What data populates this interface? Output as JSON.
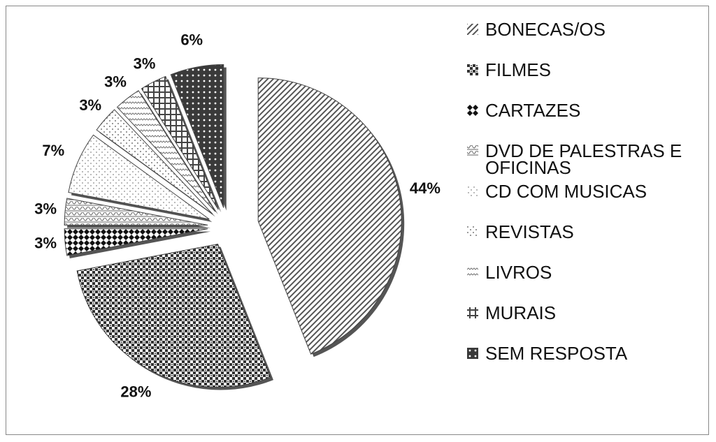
{
  "chart_data": {
    "type": "pie",
    "categories": [
      "BONECAS/OS",
      "FILMES",
      "CARTAZES",
      "DVD DE PALESTRAS E OFICINAS",
      "CD COM MUSICAS",
      "REVISTAS",
      "LIVROS",
      "MURAIS",
      "SEM RESPOSTA"
    ],
    "values": [
      44,
      28,
      3,
      3,
      7,
      3,
      3,
      3,
      6
    ],
    "value_labels": [
      "44%",
      "28%",
      "3%",
      "3%",
      "7%",
      "3%",
      "3%",
      "3%",
      "6%"
    ],
    "colors": [
      "#555555",
      "#333333",
      "#111111",
      "#666666",
      "#888888",
      "#999999",
      "#777777",
      "#444444",
      "#3a3a3a"
    ],
    "legend": "right"
  }
}
